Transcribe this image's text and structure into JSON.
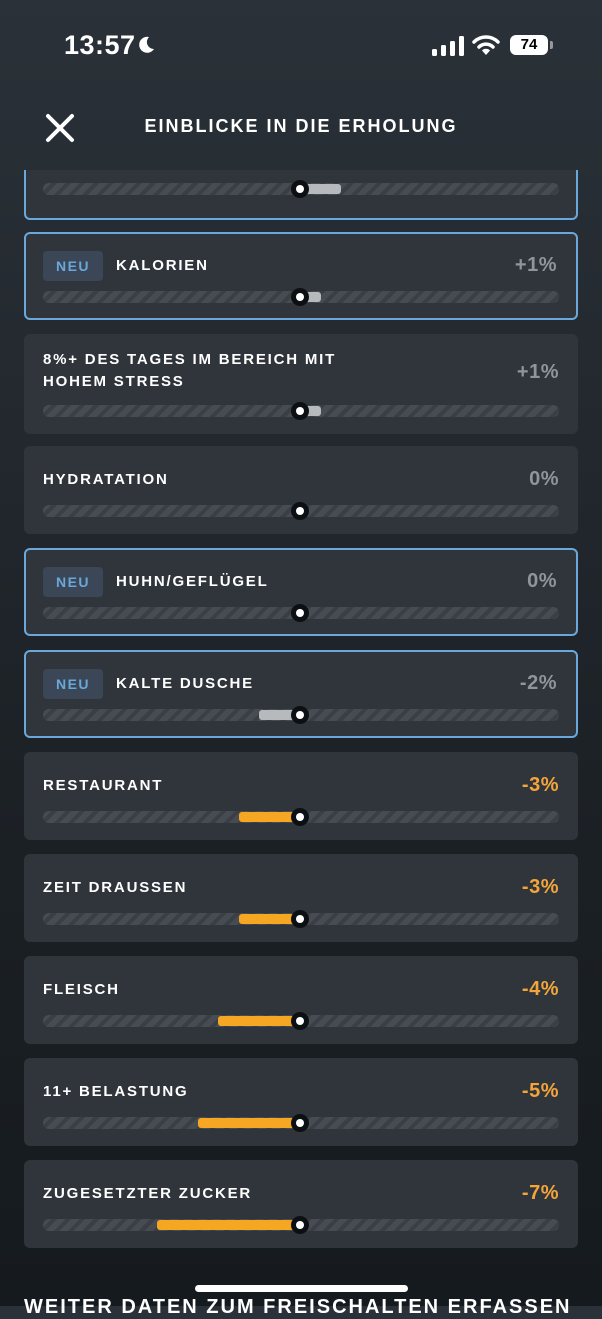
{
  "status": {
    "time": "13:57",
    "battery": "74"
  },
  "header": {
    "title": "EINBLICKE IN DIE ERHOLUNG"
  },
  "center_value": 0,
  "cards": [
    {
      "badge": "NEU",
      "label": "KALORIEN",
      "value": "+1%",
      "impact": 1,
      "tone": "grey"
    },
    {
      "badge": "",
      "label": "8%+ DES TAGES IM BEREICH MIT\nHOHEM STRESS",
      "value": "+1%",
      "impact": 1,
      "tone": "grey"
    },
    {
      "badge": "",
      "label": "HYDRATATION",
      "value": "0%",
      "impact": 0,
      "tone": "grey"
    },
    {
      "badge": "NEU",
      "label": "HUHN/GEFLÜGEL",
      "value": "0%",
      "impact": 0,
      "tone": "grey"
    },
    {
      "badge": "NEU",
      "label": "KALTE DUSCHE",
      "value": "-2%",
      "impact": -2,
      "tone": "grey"
    },
    {
      "badge": "",
      "label": "RESTAURANT",
      "value": "-3%",
      "impact": -3,
      "tone": "orange"
    },
    {
      "badge": "",
      "label": "ZEIT DRAUSSEN",
      "value": "-3%",
      "impact": -3,
      "tone": "orange"
    },
    {
      "badge": "",
      "label": "FLEISCH",
      "value": "-4%",
      "impact": -4,
      "tone": "orange"
    },
    {
      "badge": "",
      "label": "11+ BELASTUNG",
      "value": "-5%",
      "impact": -5,
      "tone": "orange"
    },
    {
      "badge": "",
      "label": "ZUGESETZTER ZUCKER",
      "value": "-7%",
      "impact": -7,
      "tone": "orange"
    }
  ],
  "partial_card": {
    "impact": 2,
    "tone": "grey"
  },
  "footer": {
    "text": "WEITER DATEN ZUM FREISCHALTEN ERFASSEN"
  }
}
